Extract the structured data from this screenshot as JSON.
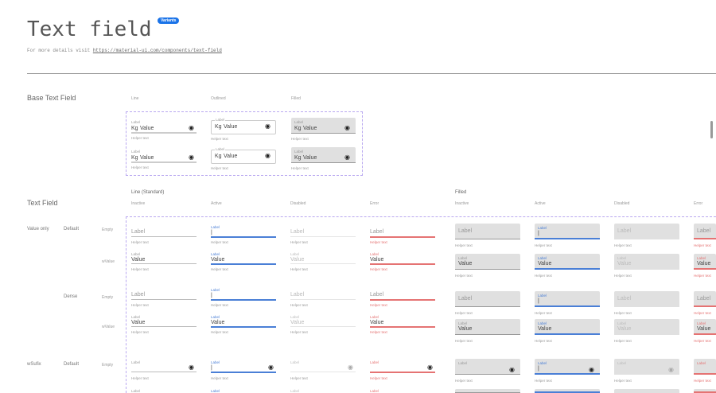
{
  "header": {
    "title": "Text field",
    "badge": "Variants",
    "subtitle_prefix": "For more details visit ",
    "link": "https://material-ui.com/components/text-field"
  },
  "base": {
    "title": "Base Text Field",
    "columns": [
      "Line",
      "Outlined",
      "Filled"
    ],
    "field": {
      "label": "Label",
      "prefix": "Kg",
      "value": "Value",
      "helper": "Helper text",
      "icon": "eye-icon"
    }
  },
  "text_field": {
    "title": "Text Field",
    "groups": [
      "Line (Standard)",
      "Filled"
    ],
    "states": [
      "Inactive",
      "Active",
      "Disabled",
      "Error"
    ],
    "rows": [
      {
        "type": "Value only",
        "size": "Default",
        "content": "Empty"
      },
      {
        "type": "",
        "size": "",
        "content": "wValue"
      },
      {
        "type": "",
        "size": "Dense",
        "content": "Empty"
      },
      {
        "type": "",
        "size": "",
        "content": "wValue"
      },
      {
        "type": "wSufix",
        "size": "Default",
        "content": "Empty"
      },
      {
        "type": "",
        "size": "",
        "content": ""
      }
    ],
    "field": {
      "label": "Label",
      "value": "Value",
      "helper": "Helper text",
      "cursor": "|"
    }
  },
  "colors": {
    "active": "#4a7fd6",
    "error": "#e57373",
    "fill": "#e0e0e0",
    "dashed": "#b9a8f0"
  }
}
